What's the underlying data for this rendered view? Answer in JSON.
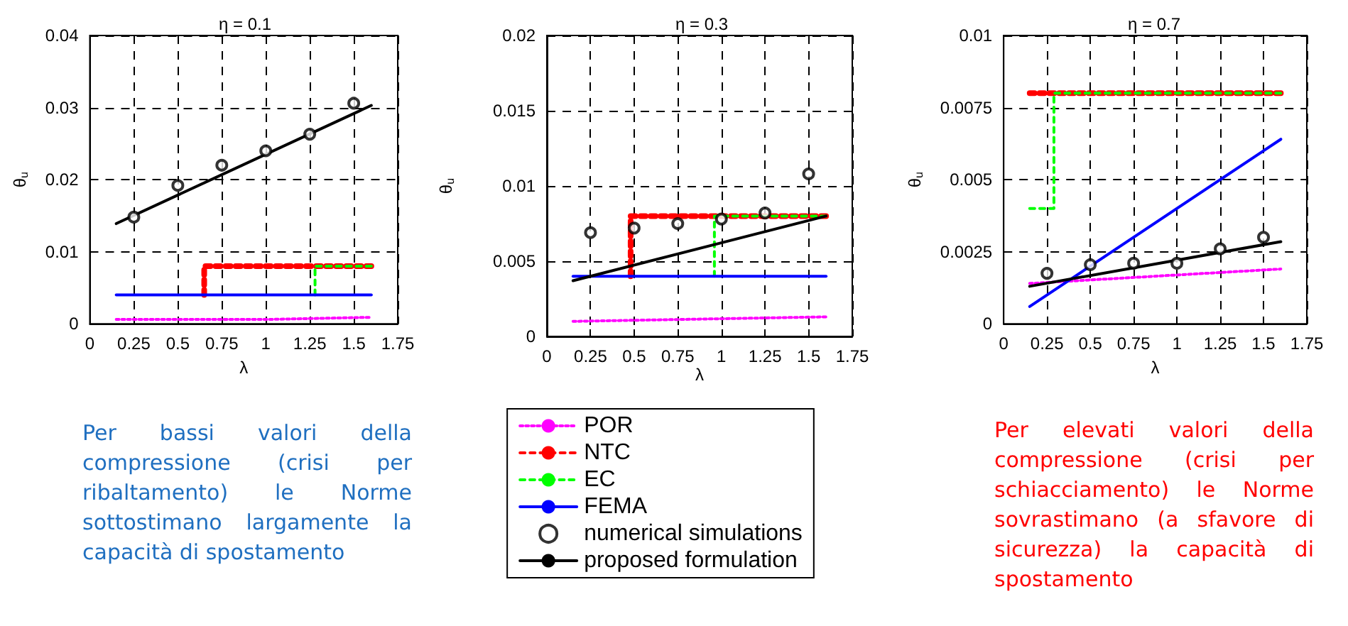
{
  "chart_data": [
    {
      "type": "line",
      "title": "η = 0.1",
      "xlabel": "λ",
      "ylabel": "θ$_{u}$",
      "xlim": [
        0,
        1.75
      ],
      "xticks": [
        0,
        0.25,
        0.5,
        0.75,
        1,
        1.25,
        1.5,
        1.75
      ],
      "ylim": [
        0,
        0.04
      ],
      "yticks": [
        0,
        0.01,
        0.02,
        0.03,
        0.04
      ],
      "grid": true,
      "legend": false,
      "annotations": [
        "Per bassi valori della compressione (crisi per ribaltamento) le Norme sottostimano largamente la capacità di spostamento"
      ],
      "series": [
        {
          "type": "line",
          "color": "#ff00ff",
          "line_style": "dotted",
          "marker": "none",
          "x": [
            0.15,
            1.0,
            1.6
          ],
          "values": [
            0.0006,
            0.0006,
            0.0009
          ]
        },
        {
          "type": "line",
          "color": "#ff0000",
          "line_style": "dashed",
          "marker": "none",
          "x": [
            0.65,
            0.65,
            1.6
          ],
          "values": [
            0.004,
            0.008,
            0.008
          ]
        },
        {
          "type": "line",
          "color": "#00ff00",
          "line_style": "dashed",
          "marker": "none",
          "x": [
            1.28,
            1.28,
            1.6
          ],
          "values": [
            0.004,
            0.008,
            0.008
          ]
        },
        {
          "type": "line",
          "color": "#0000ff",
          "line_style": "solid",
          "marker": "none",
          "x": [
            0.15,
            1.6
          ],
          "values": [
            0.004,
            0.004
          ]
        },
        {
          "type": "scatter",
          "color": "#000000",
          "marker": "circle",
          "x": [
            0.25,
            0.5,
            0.75,
            1,
            1.25,
            1.5
          ],
          "values": [
            0.0148,
            0.0192,
            0.022,
            0.024,
            0.0263,
            0.0306
          ]
        },
        {
          "type": "line",
          "color": "#000000",
          "line_style": "solid",
          "marker": "none",
          "x": [
            0.15,
            1.6
          ],
          "values": [
            0.0139,
            0.0303
          ]
        }
      ]
    },
    {
      "type": "line",
      "title": "η = 0.3",
      "xlabel": "λ",
      "ylabel": "θ$_{u}$",
      "xlim": [
        0,
        1.75
      ],
      "xticks": [
        0,
        0.25,
        0.5,
        0.75,
        1,
        1.25,
        1.5,
        1.75
      ],
      "ylim": [
        0,
        0.02
      ],
      "yticks": [
        0,
        0.005,
        0.01,
        0.015,
        0.02
      ],
      "grid": true,
      "legend": "bottom",
      "series": [
        {
          "type": "line",
          "name": "POR",
          "color": "#ff00ff",
          "line_style": "dotted",
          "marker": "none",
          "x": [
            0.15,
            1.6
          ],
          "values": [
            0.001,
            0.0013
          ]
        },
        {
          "type": "line",
          "name": "NTC",
          "color": "#ff0000",
          "line_style": "dashed",
          "marker": "none",
          "x": [
            0.48,
            0.48,
            1.6
          ],
          "values": [
            0.004,
            0.008,
            0.008
          ]
        },
        {
          "type": "line",
          "name": "EC",
          "color": "#00ff00",
          "line_style": "dashed",
          "marker": "none",
          "x": [
            0.96,
            0.96,
            1.6
          ],
          "values": [
            0.004,
            0.008,
            0.008
          ]
        },
        {
          "type": "line",
          "name": "FEMA",
          "color": "#0000ff",
          "line_style": "solid",
          "marker": "none",
          "x": [
            0.15,
            1.6
          ],
          "values": [
            0.004,
            0.004
          ]
        },
        {
          "type": "scatter",
          "name": "numerical simulations",
          "color": "#000000",
          "marker": "circle",
          "x": [
            0.25,
            0.5,
            0.75,
            1,
            1.25,
            1.5
          ],
          "values": [
            0.0069,
            0.0072,
            0.0075,
            0.0078,
            0.0082,
            0.0108
          ]
        },
        {
          "type": "line",
          "name": "proposed formulation",
          "color": "#000000",
          "line_style": "solid",
          "marker": "none",
          "x": [
            0.15,
            1.6
          ],
          "values": [
            0.0037,
            0.008
          ]
        }
      ]
    },
    {
      "type": "line",
      "title": "η = 0.7",
      "xlabel": "λ",
      "ylabel": "θ$_{u}$",
      "xlim": [
        0,
        1.75
      ],
      "xticks": [
        0,
        0.25,
        0.5,
        0.75,
        1,
        1.25,
        1.5,
        1.75
      ],
      "ylim": [
        0,
        0.01
      ],
      "yticks": [
        0,
        0.0025,
        0.005,
        0.0075,
        0.01
      ],
      "grid": true,
      "legend": false,
      "annotations": [
        "Per elevati valori della compressione (crisi per schiacciamento) le Norme sovrastimano (a sfavore di sicurezza) la capacità di spostamento"
      ],
      "series": [
        {
          "type": "line",
          "color": "#ff00ff",
          "line_style": "dotted",
          "marker": "none",
          "x": [
            0.15,
            1.6
          ],
          "values": [
            0.0014,
            0.0019
          ]
        },
        {
          "type": "line",
          "color": "#ff0000",
          "line_style": "dashed",
          "marker": "none",
          "x": [
            0.15,
            1.6
          ],
          "values": [
            0.008,
            0.008
          ]
        },
        {
          "type": "line",
          "color": "#00ff00",
          "line_style": "dashed",
          "marker": "none",
          "x": [
            0.15,
            0.29,
            0.29,
            1.6
          ],
          "values": [
            0.004,
            0.004,
            0.008,
            0.008
          ]
        },
        {
          "type": "line",
          "color": "#0000ff",
          "line_style": "solid",
          "marker": "none",
          "x": [
            0.15,
            1.6
          ],
          "values": [
            0.0006,
            0.0064
          ]
        },
        {
          "type": "scatter",
          "color": "#000000",
          "marker": "circle",
          "x": [
            0.25,
            0.5,
            0.75,
            1,
            1.25,
            1.5
          ],
          "values": [
            0.00175,
            0.00205,
            0.0021,
            0.0021,
            0.0026,
            0.003
          ]
        },
        {
          "type": "line",
          "color": "#000000",
          "line_style": "solid",
          "marker": "none",
          "x": [
            0.15,
            1.6
          ],
          "values": [
            0.0013,
            0.00285
          ]
        }
      ]
    }
  ]
}
